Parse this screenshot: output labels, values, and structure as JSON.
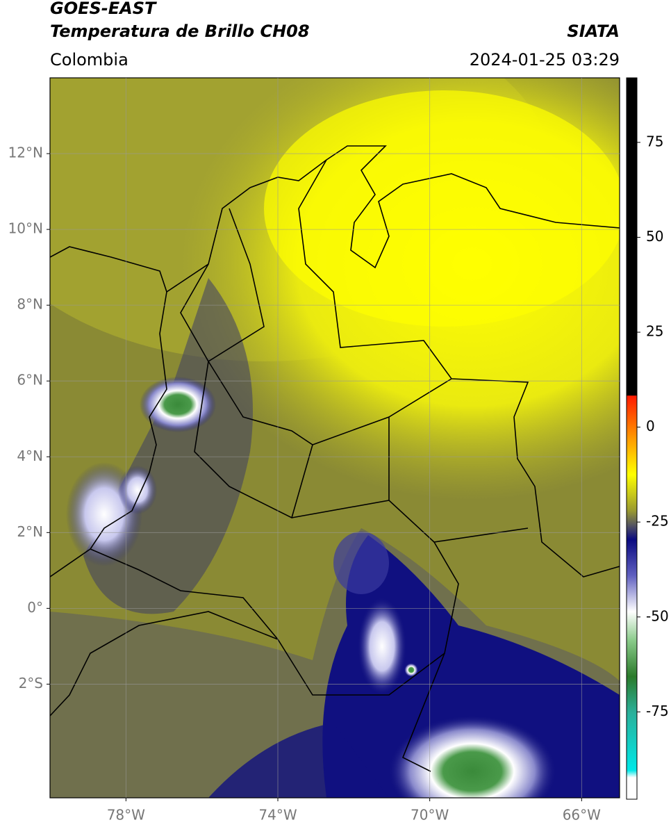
{
  "header": {
    "title": "GOES-EAST",
    "subtitle": "Temperatura de Brillo CH08",
    "region": "Colombia",
    "source": "SIATA",
    "datetime": "2024-01-25 03:29"
  },
  "map": {
    "xlim": [
      -80,
      -65
    ],
    "ylim": [
      -5,
      14
    ],
    "grid": true,
    "xticks": [
      {
        "value": -78,
        "label": "78°W"
      },
      {
        "value": -74,
        "label": "74°W"
      },
      {
        "value": -70,
        "label": "70°W"
      },
      {
        "value": -66,
        "label": "66°W"
      }
    ],
    "yticks": [
      {
        "value": 12,
        "label": "12°N"
      },
      {
        "value": 10,
        "label": "10°N"
      },
      {
        "value": 8,
        "label": "8°N"
      },
      {
        "value": 6,
        "label": "6°N"
      },
      {
        "value": 4,
        "label": "4°N"
      },
      {
        "value": 2,
        "label": "2°N"
      },
      {
        "value": 0,
        "label": "0°"
      },
      {
        "value": -2,
        "label": "2°S"
      }
    ]
  },
  "colorbar": {
    "lim": [
      -98,
      92
    ],
    "ticks": [
      75,
      50,
      25,
      0,
      -25,
      -50,
      -75
    ]
  }
}
